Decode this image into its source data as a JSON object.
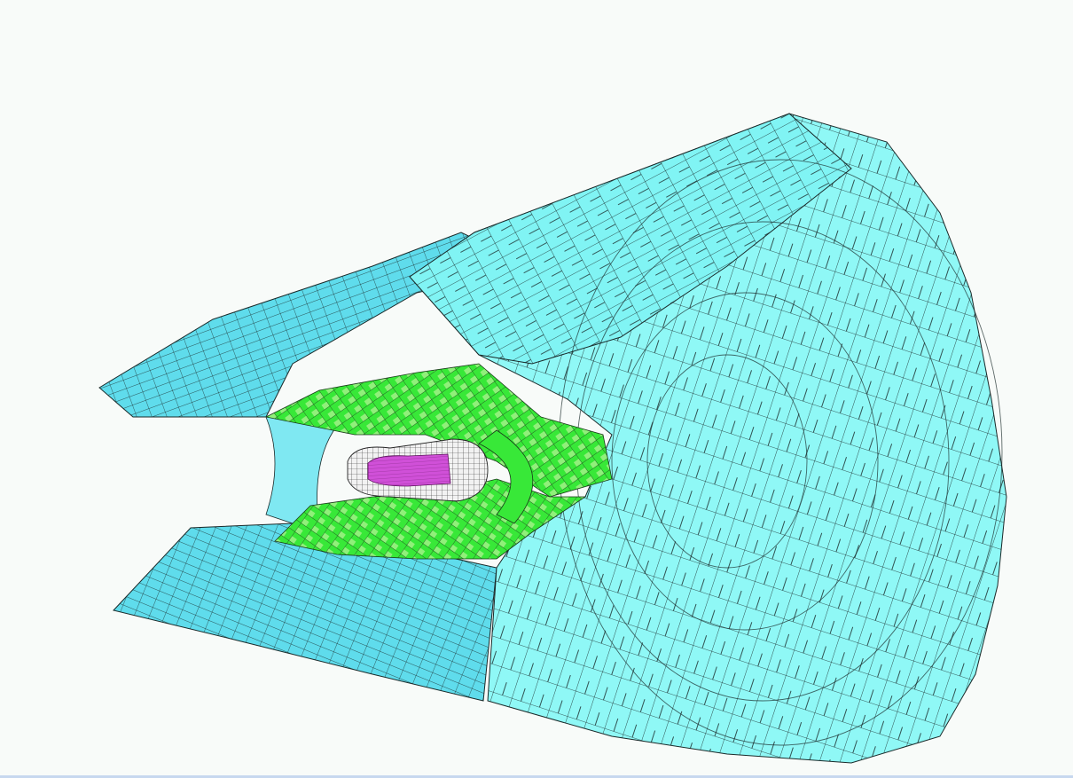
{
  "scene": {
    "kind": "detector-geometry-3d-view",
    "colors": {
      "background": "#f8fbf9",
      "outer_barrel": "#80f4f4",
      "outer_barrel_shadow": "#5fdcec",
      "outer_endcap": "#8ff8f6",
      "middle_layer": "#38e838",
      "middle_layer_light": "#90f07a",
      "inner_layer": "#f2f2f2",
      "core": "#d050d8",
      "outline": "#1a2a2a",
      "bottom_edge": "#c7d8ef"
    }
  }
}
